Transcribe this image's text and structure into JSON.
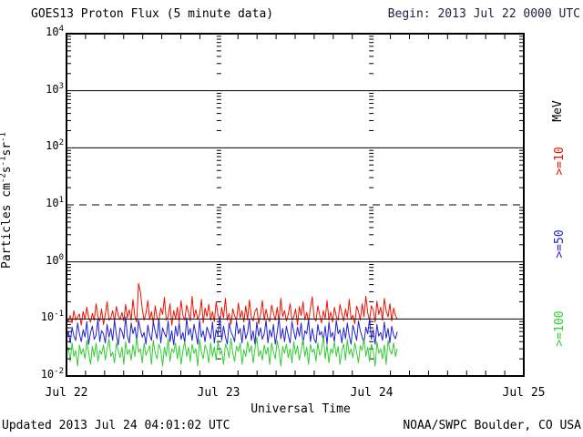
{
  "colors": {
    "background": "#ffffff",
    "frame": "#000000",
    "begin_text": "#202040",
    "red": "#ee1100",
    "blue": "#2222cc",
    "green": "#33cc33"
  },
  "footer": {
    "updated": "Updated 2013 Jul 24 04:01:02 UTC",
    "source": "NOAA/SWPC Boulder, CO USA"
  },
  "right_labels": {
    "title": "MeV",
    "items": [
      {
        "text": ">=10",
        "color": "#ee1100"
      },
      {
        "text": ">=50",
        "color": "#2222cc"
      },
      {
        "text": ">=100",
        "color": "#33cc33"
      }
    ]
  },
  "chart_data": {
    "type": "line",
    "title": "GOES13 Proton Flux (5 minute data)",
    "begin_label": "Begin: 2013 Jul 22 0000 UTC",
    "xlabel": "Universal Time",
    "ylabel_segments": [
      {
        "t": "Particles cm"
      },
      {
        "sup": "-2"
      },
      {
        "t": "s"
      },
      {
        "sup": "-1"
      },
      {
        "t": "sr"
      },
      {
        "sup": "-1"
      }
    ],
    "y_base": "10",
    "y_exponents": [
      4,
      3,
      2,
      1,
      0,
      -1,
      -2
    ],
    "ylim_exponents": [
      -2,
      4
    ],
    "x_ticks": [
      "Jul 22",
      "Jul 23",
      "Jul 24",
      "Jul 25"
    ],
    "x_range_days": 3,
    "x_minor_tick_hours": 3,
    "data_end_days": 2.17,
    "grid_solid_exponents": [
      3,
      2,
      0,
      -1
    ],
    "grid_dashed_exponents": [
      1
    ],
    "value_scale": 0.001,
    "series": [
      {
        "name": "Proton flux >=10 MeV",
        "legend": ">=10",
        "color": "#ee1100",
        "values_milli": [
          100,
          92,
          115,
          85,
          140,
          95,
          108,
          122,
          78,
          135,
          98,
          160,
          105,
          88,
          125,
          95,
          185,
          110,
          92,
          150,
          80,
          120,
          200,
          95,
          105,
          140,
          90,
          165,
          115,
          98,
          130,
          92,
          180,
          105,
          145,
          95,
          220,
          110,
          88,
          420,
          300,
          150,
          95,
          125,
          210,
          98,
          135,
          82,
          170,
          105,
          92,
          155,
          120,
          240,
          95,
          110,
          185,
          78,
          140,
          100,
          160,
          88,
          210,
          115,
          95,
          175,
          130,
          92,
          250,
          105,
          145,
          98,
          120,
          220,
          85,
          155,
          110,
          180,
          95,
          135,
          90,
          200,
          118,
          92,
          160,
          105,
          230,
          95,
          125,
          80,
          150,
          112,
          95,
          190,
          104,
          140,
          88,
          170,
          96,
          215,
          108,
          92,
          135,
          155,
          82,
          118,
          210,
          95,
          148,
          102,
          90,
          175,
          125,
          95,
          160,
          88,
          230,
          110,
          140,
          92,
          120,
          185,
          95,
          108,
          150,
          78,
          165,
          115,
          200,
          96,
          130,
          90,
          155,
          245,
          105,
          92,
          170,
          118,
          85,
          140,
          100,
          210,
          95,
          132,
          88,
          160,
          110,
          95,
          180,
          125,
          92,
          150,
          105,
          220,
          98,
          115,
          82,
          168,
          135,
          95,
          185,
          110,
          250,
          128,
          95,
          170,
          145,
          88,
          205,
          120,
          160,
          95,
          230,
          140,
          108,
          185,
          92,
          155,
          115,
          100
        ]
      },
      {
        "name": "Proton flux >=50 MeV",
        "legend": ">=50",
        "color": "#2222cc",
        "values_milli": [
          45,
          60,
          38,
          72,
          50,
          42,
          85,
          55,
          40,
          65,
          48,
          90,
          36,
          58,
          75,
          44,
          52,
          100,
          40,
          62,
          55,
          38,
          80,
          48,
          68,
          42,
          95,
          52,
          35,
          70,
          60,
          45,
          110,
          50,
          38,
          85,
          55,
          72,
          40,
          95,
          65,
          48,
          58,
          36,
          78,
          52,
          42,
          88,
          60,
          45,
          100,
          38,
          70,
          55,
          48,
          92,
          40,
          62,
          35,
          75,
          50,
          85,
          44,
          58,
          38,
          105,
          52,
          68,
          42,
          80,
          55,
          36,
          95,
          48,
          62,
          40,
          72,
          58,
          45,
          88,
          38,
          65,
          52,
          110,
          42,
          75,
          48,
          36,
          85,
          60,
          50,
          40,
          92,
          55,
          68,
          38,
          78,
          45,
          58,
          100,
          42,
          62,
          36,
          88,
          50,
          70,
          44,
          55,
          95,
          38,
          65,
          48,
          80,
          36,
          58,
          105,
          45,
          68,
          40,
          75,
          52,
          38,
          90,
          60,
          44,
          72,
          50,
          85,
          36,
          62,
          55,
          98,
          40,
          68,
          45,
          38,
          80,
          52,
          60,
          42,
          75,
          36,
          88,
          48,
          58,
          40,
          95,
          55,
          65,
          38,
          70,
          45,
          85,
          50,
          36,
          78,
          58,
          42,
          92,
          62,
          48,
          38,
          72,
          55,
          100,
          44,
          65,
          36,
          80,
          50,
          58,
          42,
          88,
          46,
          68,
          38,
          75,
          52,
          45,
          60
        ]
      },
      {
        "name": "Proton flux >=100 MeV",
        "legend": ">=100",
        "color": "#33cc33",
        "values_milli": [
          25,
          32,
          18,
          38,
          22,
          28,
          15,
          35,
          24,
          30,
          20,
          42,
          26,
          16,
          33,
          22,
          38,
          18,
          28,
          24,
          35,
          19,
          30,
          45,
          22,
          26,
          17,
          38,
          28,
          21,
          32,
          16,
          40,
          24,
          29,
          19,
          35,
          22,
          48,
          26,
          30,
          17,
          38,
          23,
          28,
          34,
          16,
          42,
          25,
          20,
          36,
          28,
          15,
          32,
          22,
          45,
          18,
          30,
          26,
          38,
          20,
          34,
          16,
          28,
          40,
          22,
          32,
          18,
          36,
          25,
          30,
          15,
          44,
          26,
          20,
          35,
          28,
          17,
          38,
          22,
          32,
          19,
          42,
          24,
          28,
          16,
          36,
          30,
          21,
          46,
          25,
          18,
          33,
          27,
          38,
          16,
          29,
          22,
          40,
          26,
          34,
          17,
          30,
          48,
          22,
          28,
          19,
          35,
          24,
          32,
          16,
          38,
          26,
          20,
          42,
          28,
          15,
          33,
          25,
          36,
          21,
          30,
          17,
          40,
          24,
          34,
          19,
          28,
          45,
          22,
          32,
          16,
          36,
          26,
          30,
          18,
          38,
          23,
          28,
          50,
          20,
          35,
          17,
          30,
          25,
          40,
          22,
          33,
          16,
          28,
          36,
          19,
          44,
          24,
          30,
          21,
          38,
          26,
          17,
          34,
          28,
          46,
          22,
          32,
          18,
          36,
          27,
          15,
          40,
          25,
          30,
          20,
          35,
          16,
          42,
          28,
          24,
          38,
          22,
          30
        ]
      }
    ]
  }
}
